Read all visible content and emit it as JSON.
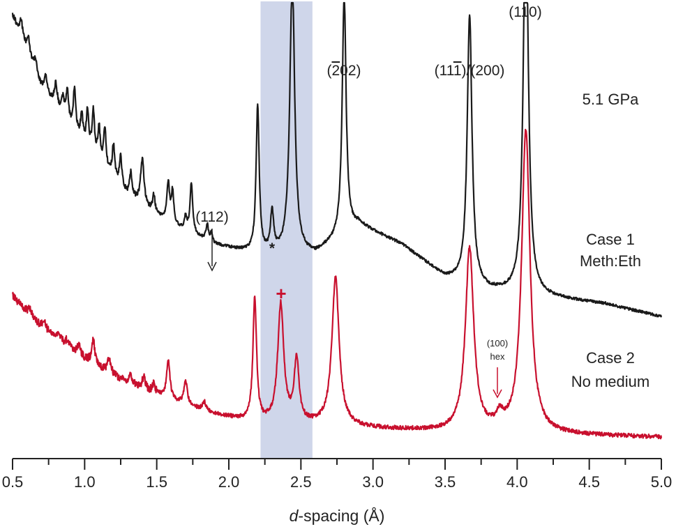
{
  "chart_data": {
    "type": "line",
    "xlabel_italic": "d",
    "xlabel_rest": "-spacing (Å)",
    "ylabel": "",
    "xlim": [
      0.5,
      5.0
    ],
    "xticks": [
      "0.5",
      "1.0",
      "1.5",
      "2.0",
      "2.5",
      "3.0",
      "3.5",
      "4.0",
      "4.5",
      "5.0"
    ],
    "highlight_band": {
      "x": [
        2.22,
        2.58
      ],
      "color": "#cfd6ea"
    },
    "colors": {
      "case1": "#1a1a1a",
      "case2": "#c8102e",
      "band": "#cfd6ea"
    },
    "pressure_label": "5.1 GPa",
    "series": [
      {
        "key": "case1",
        "label_line1": "Case 1",
        "label_line2": "Meth:Eth",
        "color": "#1a1a1a",
        "baseline": [
          [
            0.5,
            1.0
          ],
          [
            0.7,
            0.78
          ],
          [
            1.0,
            0.6
          ],
          [
            1.3,
            0.45
          ],
          [
            1.6,
            0.36
          ],
          [
            1.9,
            0.3
          ],
          [
            2.2,
            0.27
          ],
          [
            2.6,
            0.27
          ],
          [
            2.9,
            0.36
          ],
          [
            3.2,
            0.3
          ],
          [
            3.5,
            0.2
          ],
          [
            3.8,
            0.16
          ],
          [
            4.2,
            0.14
          ],
          [
            4.6,
            0.12
          ],
          [
            5.0,
            0.08
          ]
        ],
        "peaks": [
          {
            "x": 0.56,
            "h": 0.05,
            "w": 0.012
          },
          {
            "x": 0.61,
            "h": 0.05,
            "w": 0.012
          },
          {
            "x": 0.66,
            "h": 0.04,
            "w": 0.012
          },
          {
            "x": 0.73,
            "h": 0.05,
            "w": 0.012
          },
          {
            "x": 0.8,
            "h": 0.07,
            "w": 0.012
          },
          {
            "x": 0.85,
            "h": 0.05,
            "w": 0.012
          },
          {
            "x": 0.88,
            "h": 0.09,
            "w": 0.01
          },
          {
            "x": 0.93,
            "h": 0.13,
            "w": 0.01
          },
          {
            "x": 0.98,
            "h": 0.08,
            "w": 0.01
          },
          {
            "x": 1.02,
            "h": 0.11,
            "w": 0.01
          },
          {
            "x": 1.06,
            "h": 0.13,
            "w": 0.01
          },
          {
            "x": 1.1,
            "h": 0.1,
            "w": 0.01
          },
          {
            "x": 1.14,
            "h": 0.12,
            "w": 0.01
          },
          {
            "x": 1.2,
            "h": 0.1,
            "w": 0.01
          },
          {
            "x": 1.25,
            "h": 0.09,
            "w": 0.01
          },
          {
            "x": 1.32,
            "h": 0.07,
            "w": 0.01
          },
          {
            "x": 1.4,
            "h": 0.14,
            "w": 0.014
          },
          {
            "x": 1.48,
            "h": 0.05,
            "w": 0.01
          },
          {
            "x": 1.58,
            "h": 0.12,
            "w": 0.011
          },
          {
            "x": 1.61,
            "h": 0.1,
            "w": 0.01
          },
          {
            "x": 1.7,
            "h": 0.04,
            "w": 0.01
          },
          {
            "x": 1.74,
            "h": 0.15,
            "w": 0.011
          },
          {
            "x": 1.85,
            "h": 0.05,
            "w": 0.01
          },
          {
            "x": 1.88,
            "h": 0.03,
            "w": 0.008
          },
          {
            "x": 2.2,
            "h": 0.45,
            "w": 0.013
          },
          {
            "x": 2.3,
            "h": 0.12,
            "w": 0.013
          },
          {
            "x": 2.44,
            "h": 0.85,
            "w": 0.02
          },
          {
            "x": 2.8,
            "h": 0.73,
            "w": 0.016
          },
          {
            "x": 3.67,
            "h": 0.82,
            "w": 0.02
          },
          {
            "x": 4.06,
            "h": 1.2,
            "w": 0.021
          }
        ]
      },
      {
        "key": "case2",
        "label_line1": "Case 2",
        "label_line2": "No medium",
        "color": "#c8102e",
        "baseline": [
          [
            0.5,
            0.86
          ],
          [
            0.7,
            0.68
          ],
          [
            1.0,
            0.5
          ],
          [
            1.3,
            0.36
          ],
          [
            1.6,
            0.26
          ],
          [
            1.9,
            0.18
          ],
          [
            2.2,
            0.13
          ],
          [
            2.6,
            0.12
          ],
          [
            3.0,
            0.1
          ],
          [
            3.5,
            0.08
          ],
          [
            4.0,
            0.07
          ],
          [
            4.5,
            0.06
          ],
          [
            5.0,
            0.05
          ]
        ],
        "peaks": [
          {
            "x": 0.62,
            "h": 0.04,
            "w": 0.014
          },
          {
            "x": 0.72,
            "h": 0.05,
            "w": 0.014
          },
          {
            "x": 0.82,
            "h": 0.05,
            "w": 0.012
          },
          {
            "x": 0.88,
            "h": 0.04,
            "w": 0.012
          },
          {
            "x": 0.96,
            "h": 0.06,
            "w": 0.012
          },
          {
            "x": 1.06,
            "h": 0.14,
            "w": 0.012
          },
          {
            "x": 1.17,
            "h": 0.08,
            "w": 0.013
          },
          {
            "x": 1.32,
            "h": 0.05,
            "w": 0.013
          },
          {
            "x": 1.41,
            "h": 0.07,
            "w": 0.013
          },
          {
            "x": 1.48,
            "h": 0.05,
            "w": 0.013
          },
          {
            "x": 1.58,
            "h": 0.22,
            "w": 0.014
          },
          {
            "x": 1.7,
            "h": 0.14,
            "w": 0.014
          },
          {
            "x": 1.83,
            "h": 0.05,
            "w": 0.015
          },
          {
            "x": 2.18,
            "h": 0.71,
            "w": 0.015
          },
          {
            "x": 2.36,
            "h": 0.68,
            "w": 0.025
          },
          {
            "x": 2.47,
            "h": 0.36,
            "w": 0.02
          },
          {
            "x": 2.74,
            "h": 0.85,
            "w": 0.03
          },
          {
            "x": 3.67,
            "h": 1.05,
            "w": 0.035
          },
          {
            "x": 3.88,
            "h": 0.07,
            "w": 0.03
          },
          {
            "x": 4.06,
            "h": 1.74,
            "w": 0.035
          }
        ]
      }
    ],
    "annotations": {
      "p110": "(110)",
      "p111_pre": "(11",
      "p111_bar": "1",
      "p111_post": ")/(200)",
      "p202_pre": "(",
      "p202_bar": "2",
      "p202_post": "02)",
      "p112": "(112)",
      "asterisk": "*",
      "cross": "+",
      "hex_line1": "(100)",
      "hex_line2": "hex"
    }
  }
}
